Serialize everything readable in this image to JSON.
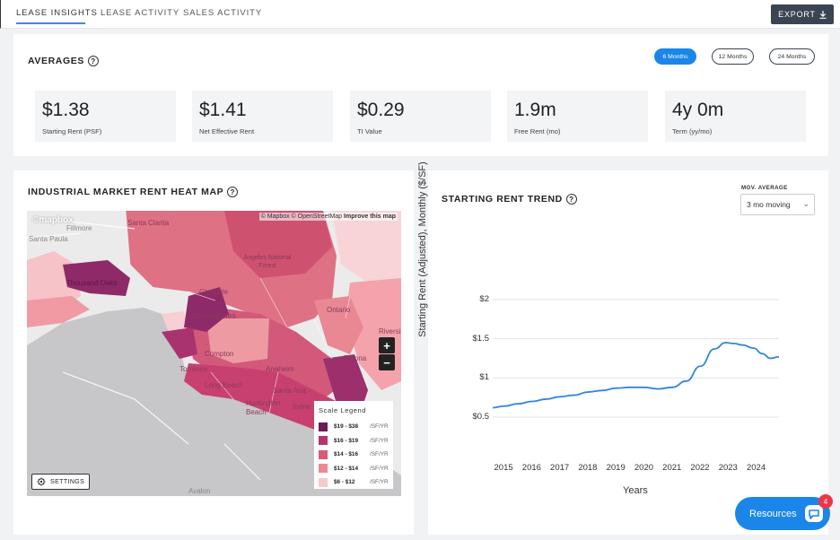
{
  "nav": {
    "tabs": [
      {
        "label": "Lease Insights",
        "active": true
      },
      {
        "label": "Lease Activity",
        "active": false
      },
      {
        "label": "Sales Activity",
        "active": false
      }
    ],
    "export_label": "Export"
  },
  "averages": {
    "title": "Averages",
    "help": "?",
    "periods": [
      {
        "label": "6 Months",
        "active": true
      },
      {
        "label": "12 Months",
        "active": false
      },
      {
        "label": "24 Months",
        "active": false
      }
    ],
    "stats": [
      {
        "value": "$1.38",
        "label": "Starting Rent (PSF)"
      },
      {
        "value": "$1.41",
        "label": "Net Effective Rent"
      },
      {
        "value": "$0.29",
        "label": "TI Value"
      },
      {
        "value": "1.9m",
        "label": "Free Rent (mo)"
      },
      {
        "value": "4y 0m",
        "label": "Term (yy/mo)"
      }
    ]
  },
  "heatmap": {
    "title": "Industrial Market Rent Heat Map",
    "help": "?",
    "mapbox": "©mapbox",
    "attribution": "© Mapbox © OpenStreetMap",
    "improve": "Improve this map",
    "zoom_in": "+",
    "zoom_out": "−",
    "settings_label": "Settings",
    "place_labels": [
      "Santa Clarita",
      "Fillmore",
      "Santa Paula",
      "Thousand Oaks",
      "Angeles National Forest",
      "Glendale",
      "Los Angeles",
      "Compton",
      "Torrance",
      "Long Beach",
      "Anaheim",
      "Santa Ana",
      "Irvine",
      "Huntington Beach",
      "Ontario",
      "Riverside",
      "Corona",
      "Avalon"
    ],
    "legend": {
      "title": "Scale Legend",
      "unit": "/SF/YR",
      "items": [
        {
          "range": "$19 - $38",
          "color": "#6e1a55"
        },
        {
          "range": "$16 - $19",
          "color": "#b8336e"
        },
        {
          "range": "$14 - $16",
          "color": "#d85a78"
        },
        {
          "range": "$12 - $14",
          "color": "#ec8a92"
        },
        {
          "range": "$6 - $12",
          "color": "#f8c9cc"
        }
      ]
    }
  },
  "trend": {
    "title": "Starting Rent Trend",
    "help": "?",
    "mov_label": "Mov. Average",
    "mov_value": "3 mo moving",
    "chev": "⌄",
    "ylabel": "Starting Rent (Adjusted), Monthly ($/SF)",
    "xlabel": "Years"
  },
  "chart_data": {
    "type": "line",
    "title": "Starting Rent Trend",
    "xlabel": "Years",
    "ylabel": "Starting Rent (Adjusted), Monthly ($/SF)",
    "ylim": [
      0.5,
      2
    ],
    "xlim": [
      2014.6,
      2024.8
    ],
    "y_ticks": [
      {
        "value": 0.5,
        "label": "$0.5"
      },
      {
        "value": 1,
        "label": "$1"
      },
      {
        "value": 1.5,
        "label": "$1.5"
      },
      {
        "value": 2,
        "label": "$2"
      }
    ],
    "x_ticks": [
      2015,
      2016,
      2017,
      2018,
      2019,
      2020,
      2021,
      2022,
      2023,
      2024
    ],
    "series": [
      {
        "name": "Starting Rent",
        "color": "#2f86dd",
        "points": [
          [
            2014.6,
            0.62
          ],
          [
            2015.0,
            0.64
          ],
          [
            2015.5,
            0.67
          ],
          [
            2016.0,
            0.7
          ],
          [
            2016.5,
            0.73
          ],
          [
            2017.0,
            0.76
          ],
          [
            2017.5,
            0.78
          ],
          [
            2018.0,
            0.82
          ],
          [
            2018.5,
            0.84
          ],
          [
            2019.0,
            0.87
          ],
          [
            2019.5,
            0.88
          ],
          [
            2020.0,
            0.88
          ],
          [
            2020.5,
            0.86
          ],
          [
            2021.0,
            0.88
          ],
          [
            2021.5,
            0.96
          ],
          [
            2022.0,
            1.15
          ],
          [
            2022.5,
            1.37
          ],
          [
            2022.9,
            1.45
          ],
          [
            2023.2,
            1.44
          ],
          [
            2023.5,
            1.42
          ],
          [
            2023.9,
            1.38
          ],
          [
            2024.2,
            1.31
          ],
          [
            2024.5,
            1.25
          ],
          [
            2024.8,
            1.27
          ]
        ]
      }
    ]
  },
  "resources": {
    "label": "Resources",
    "badge": "4"
  }
}
